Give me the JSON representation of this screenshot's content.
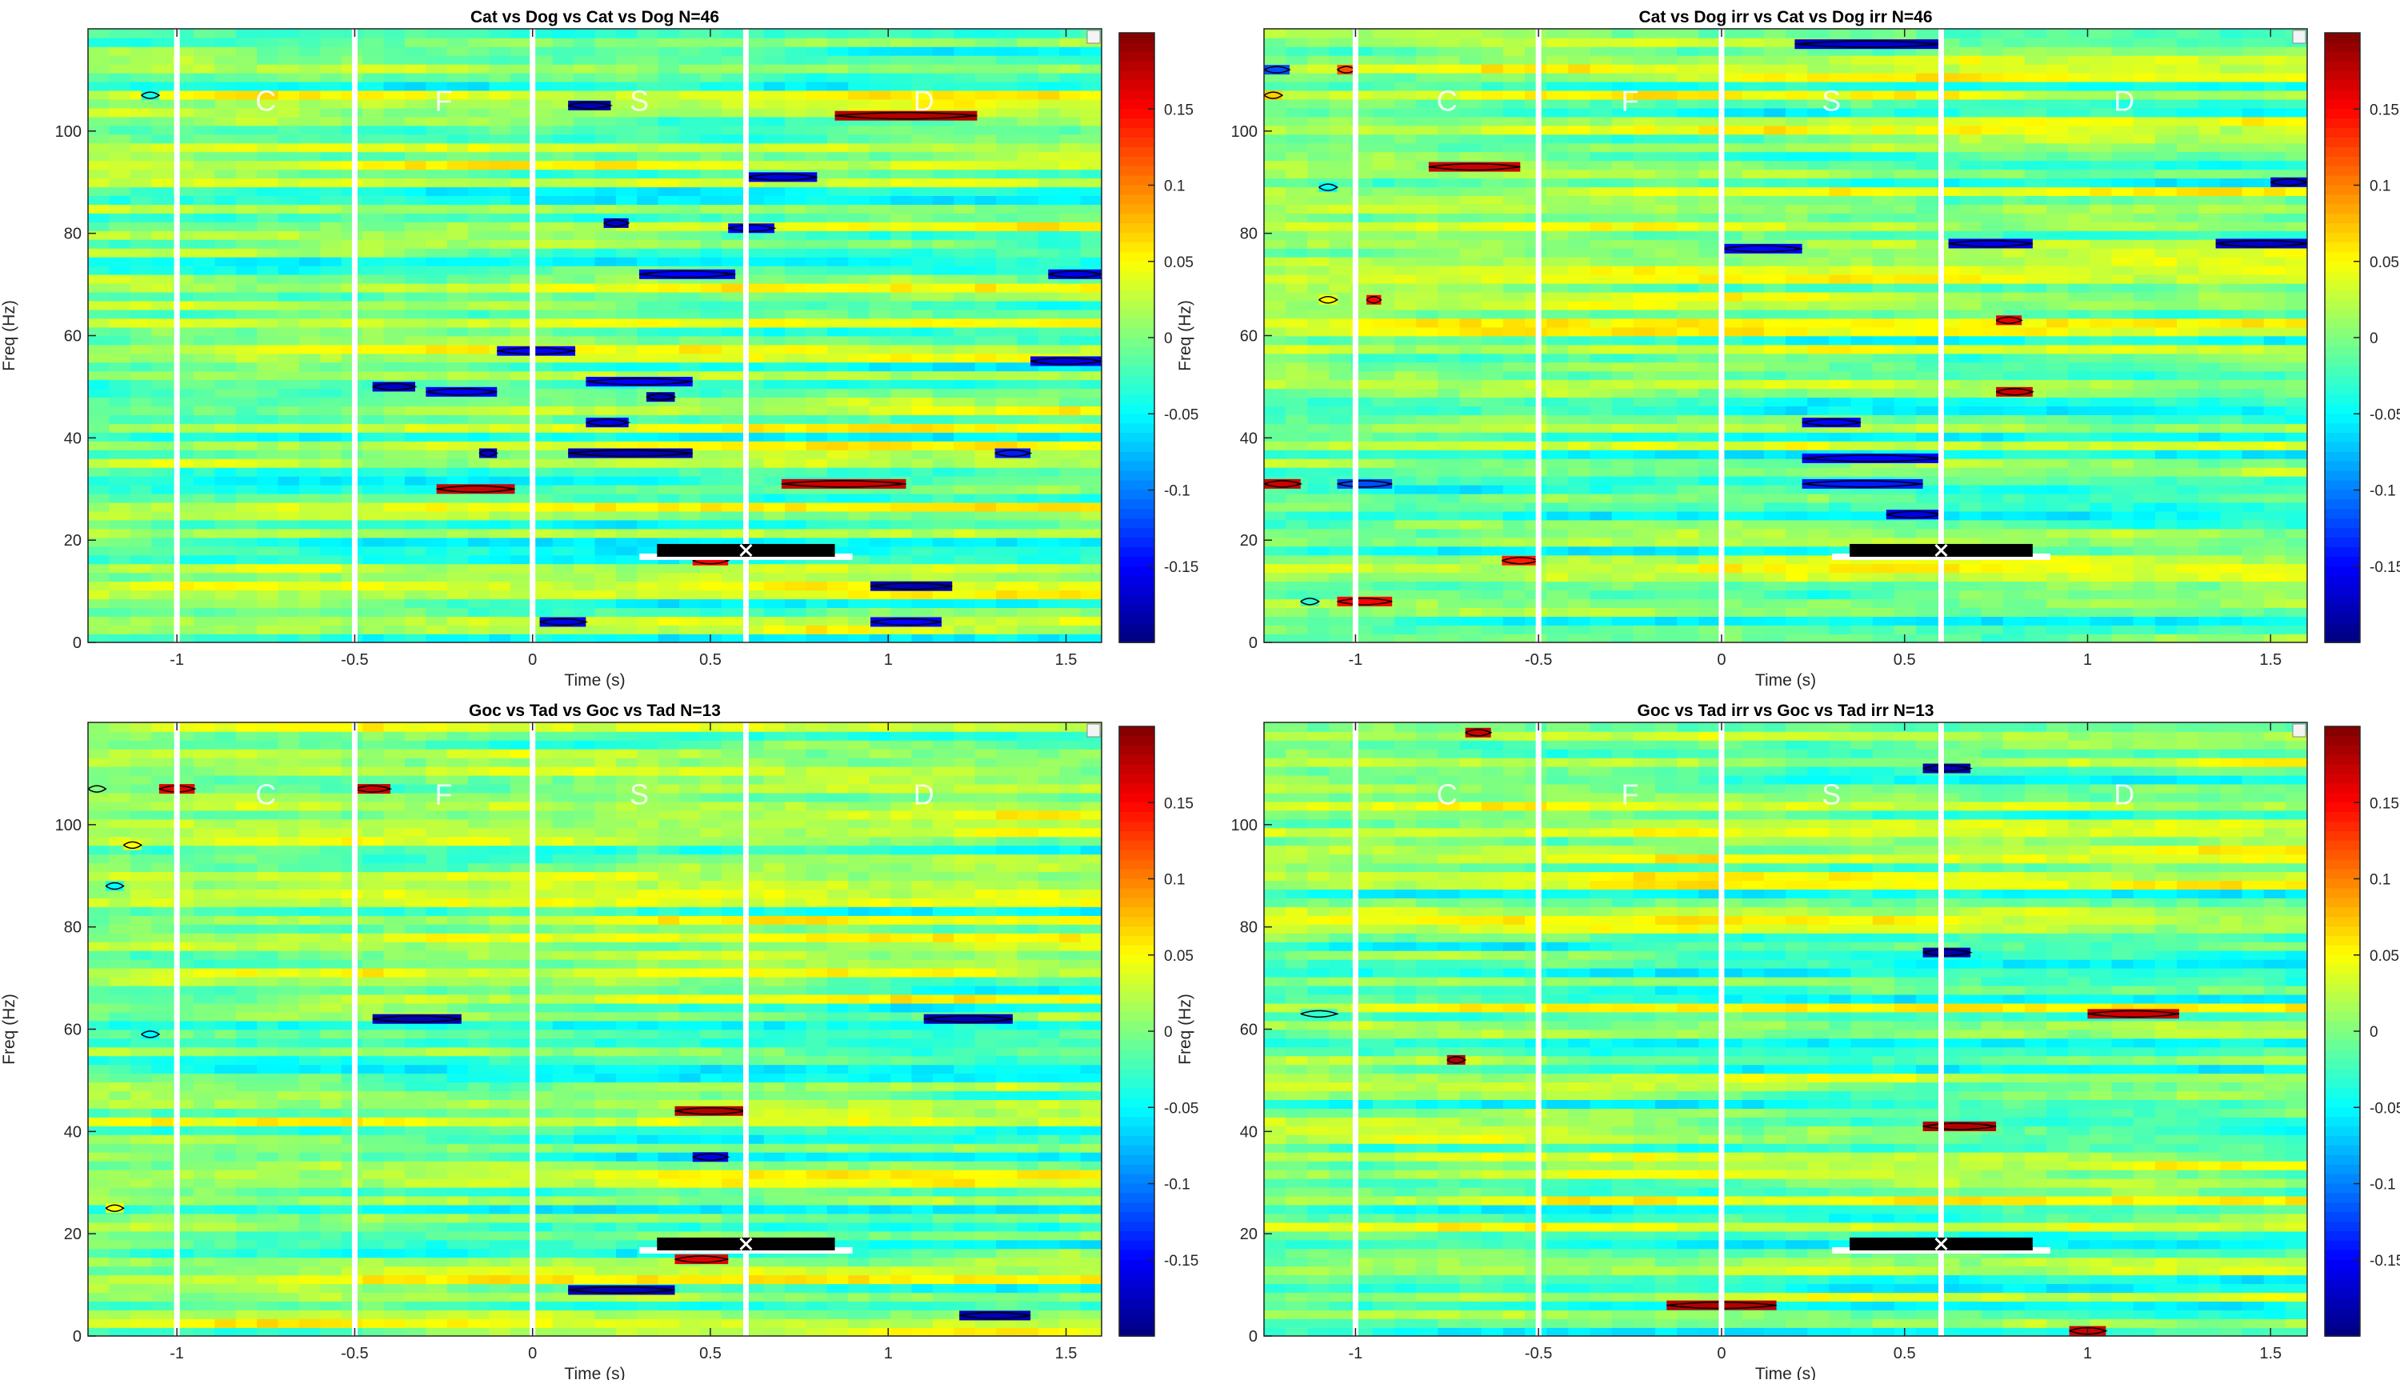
{
  "chart_data": [
    {
      "type": "heatmap",
      "title": "Cat vs Dog vs Cat vs Dog N=46",
      "xlabel": "Time (s)",
      "ylabel": "Freq (Hz)",
      "xlim": [
        -1.25,
        1.6
      ],
      "ylim": [
        0,
        120
      ],
      "xticks": [
        -1,
        -0.5,
        0,
        0.5,
        1,
        1.5
      ],
      "yticks": [
        0,
        20,
        40,
        60,
        80,
        100
      ],
      "colorbar": {
        "range": [
          -0.2,
          0.2
        ],
        "ticks": [
          -0.15,
          -0.1,
          -0.05,
          0,
          0.05,
          0.1,
          0.15
        ],
        "colormap": "jet"
      },
      "phase_markers": [
        -1,
        -0.5,
        0,
        0.6
      ],
      "phase_labels": [
        {
          "label": "C",
          "t": -0.75
        },
        {
          "label": "F",
          "t": -0.25
        },
        {
          "label": "S",
          "t": 0.3
        },
        {
          "label": "D",
          "t": 1.1
        }
      ],
      "window_bar": {
        "start": 0.35,
        "end": 0.85,
        "marker": 0.6,
        "freq": 18
      },
      "seed": 11,
      "clusters": [
        {
          "t0": -1.1,
          "t1": -1.05,
          "f": 107,
          "v": -0.04
        },
        {
          "t0": 0.1,
          "t1": 0.22,
          "f": 105,
          "v": -0.18
        },
        {
          "t0": 0.85,
          "t1": 1.25,
          "f": 103,
          "v": 0.18
        },
        {
          "t0": 0.6,
          "t1": 0.8,
          "f": 91,
          "v": -0.16
        },
        {
          "t0": 0.2,
          "t1": 0.27,
          "f": 82,
          "v": -0.17
        },
        {
          "t0": 0.55,
          "t1": 0.68,
          "f": 81,
          "v": -0.15
        },
        {
          "t0": 0.3,
          "t1": 0.57,
          "f": 72,
          "v": -0.15
        },
        {
          "t0": 1.45,
          "t1": 1.6,
          "f": 72,
          "v": -0.16
        },
        {
          "t0": -0.1,
          "t1": 0.12,
          "f": 57,
          "v": -0.15
        },
        {
          "t0": 1.4,
          "t1": 1.6,
          "f": 55,
          "v": -0.16
        },
        {
          "t0": 0.15,
          "t1": 0.45,
          "f": 51,
          "v": -0.15
        },
        {
          "t0": -0.45,
          "t1": -0.33,
          "f": 50,
          "v": -0.17
        },
        {
          "t0": -0.3,
          "t1": -0.1,
          "f": 49,
          "v": -0.15
        },
        {
          "t0": 0.32,
          "t1": 0.4,
          "f": 48,
          "v": -0.18
        },
        {
          "t0": 0.15,
          "t1": 0.27,
          "f": 43,
          "v": -0.16
        },
        {
          "t0": 0.1,
          "t1": 0.45,
          "f": 37,
          "v": -0.18
        },
        {
          "t0": -0.15,
          "t1": -0.1,
          "f": 37,
          "v": -0.17
        },
        {
          "t0": 1.3,
          "t1": 1.4,
          "f": 37,
          "v": -0.14
        },
        {
          "t0": -0.27,
          "t1": -0.05,
          "f": 30,
          "v": 0.17
        },
        {
          "t0": 0.7,
          "t1": 1.05,
          "f": 31,
          "v": 0.17
        },
        {
          "t0": 0.45,
          "t1": 0.55,
          "f": 16,
          "v": 0.15
        },
        {
          "t0": 0.95,
          "t1": 1.18,
          "f": 11,
          "v": -0.18
        },
        {
          "t0": 0.02,
          "t1": 0.15,
          "f": 4,
          "v": -0.16
        },
        {
          "t0": 0.95,
          "t1": 1.15,
          "f": 4,
          "v": -0.15
        }
      ]
    },
    {
      "type": "heatmap",
      "title": "Cat vs Dog irr vs Cat vs Dog irr N=46",
      "xlabel": "Time (s)",
      "ylabel": "Freq (Hz)",
      "xlim": [
        -1.25,
        1.6
      ],
      "ylim": [
        0,
        120
      ],
      "xticks": [
        -1,
        -0.5,
        0,
        0.5,
        1,
        1.5
      ],
      "yticks": [
        0,
        20,
        40,
        60,
        80,
        100
      ],
      "colorbar": {
        "range": [
          -0.2,
          0.2
        ],
        "ticks": [
          -0.15,
          -0.1,
          -0.05,
          0,
          0.05,
          0.1,
          0.15
        ],
        "colormap": "jet"
      },
      "phase_markers": [
        -1,
        -0.5,
        0,
        0.6
      ],
      "phase_labels": [
        {
          "label": "C",
          "t": -0.75
        },
        {
          "label": "F",
          "t": -0.25
        },
        {
          "label": "S",
          "t": 0.3
        },
        {
          "label": "D",
          "t": 1.1
        }
      ],
      "window_bar": {
        "start": 0.35,
        "end": 0.85,
        "marker": 0.6,
        "freq": 18
      },
      "seed": 23,
      "clusters": [
        {
          "t0": 0.2,
          "t1": 0.6,
          "f": 117,
          "v": -0.17
        },
        {
          "t0": -1.05,
          "t1": -1.0,
          "f": 112,
          "v": 0.12
        },
        {
          "t0": -1.25,
          "t1": -1.18,
          "f": 112,
          "v": -0.12
        },
        {
          "t0": -1.25,
          "t1": -1.2,
          "f": 107,
          "v": 0.07
        },
        {
          "t0": -0.8,
          "t1": -0.55,
          "f": 93,
          "v": 0.17
        },
        {
          "t0": -1.1,
          "t1": -1.05,
          "f": 89,
          "v": -0.05
        },
        {
          "t0": 1.5,
          "t1": 1.6,
          "f": 90,
          "v": -0.17
        },
        {
          "t0": 0.0,
          "t1": 0.22,
          "f": 77,
          "v": -0.15
        },
        {
          "t0": 0.62,
          "t1": 0.85,
          "f": 78,
          "v": -0.16
        },
        {
          "t0": 1.35,
          "t1": 1.6,
          "f": 78,
          "v": -0.17
        },
        {
          "t0": -1.1,
          "t1": -1.05,
          "f": 67,
          "v": 0.05
        },
        {
          "t0": -0.97,
          "t1": -0.93,
          "f": 67,
          "v": 0.15
        },
        {
          "t0": 0.75,
          "t1": 0.82,
          "f": 63,
          "v": 0.16
        },
        {
          "t0": 0.75,
          "t1": 0.85,
          "f": 49,
          "v": 0.17
        },
        {
          "t0": 0.22,
          "t1": 0.38,
          "f": 43,
          "v": -0.15
        },
        {
          "t0": 0.22,
          "t1": 0.6,
          "f": 36,
          "v": -0.15
        },
        {
          "t0": 0.22,
          "t1": 0.55,
          "f": 31,
          "v": -0.14
        },
        {
          "t0": -1.25,
          "t1": -1.15,
          "f": 31,
          "v": 0.17
        },
        {
          "t0": -1.05,
          "t1": -0.9,
          "f": 31,
          "v": -0.12
        },
        {
          "t0": 0.45,
          "t1": 0.6,
          "f": 25,
          "v": -0.16
        },
        {
          "t0": -0.6,
          "t1": -0.5,
          "f": 16,
          "v": 0.14
        },
        {
          "t0": -1.15,
          "t1": -1.1,
          "f": 8,
          "v": -0.03
        },
        {
          "t0": -1.05,
          "t1": -0.9,
          "f": 8,
          "v": 0.15
        }
      ]
    },
    {
      "type": "heatmap",
      "title": "Goc vs Tad vs Goc vs Tad N=13",
      "xlabel": "Time (s)",
      "ylabel": "Freq (Hz)",
      "xlim": [
        -1.25,
        1.6
      ],
      "ylim": [
        0,
        120
      ],
      "xticks": [
        -1,
        -0.5,
        0,
        0.5,
        1,
        1.5
      ],
      "yticks": [
        0,
        20,
        40,
        60,
        80,
        100
      ],
      "colorbar": {
        "range": [
          -0.2,
          0.2
        ],
        "ticks": [
          -0.15,
          -0.1,
          -0.05,
          0,
          0.05,
          0.1,
          0.15
        ],
        "colormap": "jet"
      },
      "phase_markers": [
        -1,
        -0.5,
        0,
        0.6
      ],
      "phase_labels": [
        {
          "label": "C",
          "t": -0.75
        },
        {
          "label": "F",
          "t": -0.25
        },
        {
          "label": "S",
          "t": 0.3
        },
        {
          "label": "D",
          "t": 1.1
        }
      ],
      "window_bar": {
        "start": 0.35,
        "end": 0.85,
        "marker": 0.6,
        "freq": 18
      },
      "seed": 37,
      "clusters": [
        {
          "t0": -1.25,
          "t1": -1.2,
          "f": 107,
          "v": 0.0
        },
        {
          "t0": -1.05,
          "t1": -0.95,
          "f": 107,
          "v": 0.16
        },
        {
          "t0": -0.5,
          "t1": -0.4,
          "f": 107,
          "v": 0.17
        },
        {
          "t0": -1.15,
          "t1": -1.1,
          "f": 96,
          "v": 0.05
        },
        {
          "t0": -1.2,
          "t1": -1.15,
          "f": 88,
          "v": -0.05
        },
        {
          "t0": -0.45,
          "t1": -0.2,
          "f": 62,
          "v": -0.18
        },
        {
          "t0": 1.1,
          "t1": 1.35,
          "f": 62,
          "v": -0.18
        },
        {
          "t0": -1.1,
          "t1": -1.05,
          "f": 59,
          "v": -0.05
        },
        {
          "t0": 0.4,
          "t1": 0.6,
          "f": 44,
          "v": 0.18
        },
        {
          "t0": 0.45,
          "t1": 0.55,
          "f": 35,
          "v": -0.16
        },
        {
          "t0": -1.2,
          "t1": -1.15,
          "f": 25,
          "v": 0.05
        },
        {
          "t0": 0.4,
          "t1": 0.55,
          "f": 15,
          "v": 0.16
        },
        {
          "t0": 0.1,
          "t1": 0.4,
          "f": 9,
          "v": -0.18
        },
        {
          "t0": 1.2,
          "t1": 1.4,
          "f": 4,
          "v": -0.18
        }
      ]
    },
    {
      "type": "heatmap",
      "title": "Goc vs Tad irr vs Goc vs Tad irr N=13",
      "xlabel": "Time (s)",
      "ylabel": "Freq (Hz)",
      "xlim": [
        -1.25,
        1.6
      ],
      "ylim": [
        0,
        120
      ],
      "xticks": [
        -1,
        -0.5,
        0,
        0.5,
        1,
        1.5
      ],
      "yticks": [
        0,
        20,
        40,
        60,
        80,
        100
      ],
      "colorbar": {
        "range": [
          -0.2,
          0.2
        ],
        "ticks": [
          -0.15,
          -0.1,
          -0.05,
          0,
          0.05,
          0.1,
          0.15
        ],
        "colormap": "jet"
      },
      "phase_markers": [
        -1,
        -0.5,
        0,
        0.6
      ],
      "phase_labels": [
        {
          "label": "C",
          "t": -0.75
        },
        {
          "label": "F",
          "t": -0.25
        },
        {
          "label": "S",
          "t": 0.3
        },
        {
          "label": "D",
          "t": 1.1
        }
      ],
      "window_bar": {
        "start": 0.35,
        "end": 0.85,
        "marker": 0.6,
        "freq": 18
      },
      "seed": 53,
      "clusters": [
        {
          "t0": -0.7,
          "t1": -0.63,
          "f": 118,
          "v": 0.17
        },
        {
          "t0": 0.55,
          "t1": 0.68,
          "f": 111,
          "v": -0.18
        },
        {
          "t0": 0.55,
          "t1": 0.68,
          "f": 75,
          "v": -0.18
        },
        {
          "t0": -1.15,
          "t1": -1.05,
          "f": 63,
          "v": -0.03
        },
        {
          "t0": 1.0,
          "t1": 1.25,
          "f": 63,
          "v": 0.17
        },
        {
          "t0": -0.75,
          "t1": -0.7,
          "f": 54,
          "v": 0.18
        },
        {
          "t0": 0.55,
          "t1": 0.75,
          "f": 41,
          "v": 0.18
        },
        {
          "t0": -0.15,
          "t1": 0.15,
          "f": 6,
          "v": 0.18
        },
        {
          "t0": 0.95,
          "t1": 1.05,
          "f": 1,
          "v": 0.17
        }
      ]
    }
  ]
}
